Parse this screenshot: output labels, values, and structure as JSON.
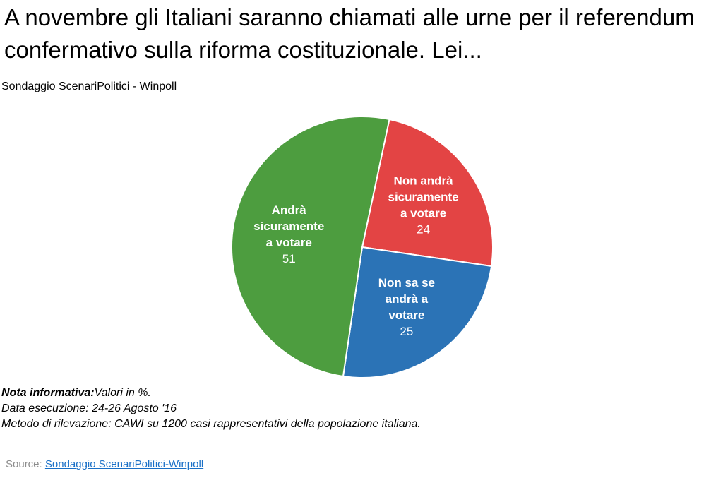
{
  "title": "A novembre gli Italiani saranno chiamati alle urne per il referendum confermativo sulla riforma costituzionale. Lei...",
  "subtitle": "Sondaggio ScenariPolitici - Winpoll",
  "chart_data": {
    "type": "pie",
    "title": "A novembre gli Italiani saranno chiamati alle urne per il referendum confermativo sulla riforma costituzionale. Lei...",
    "subtitle": "Sondaggio ScenariPolitici - Winpoll",
    "unit": "%",
    "slices": [
      {
        "label": "Non andrà sicuramente a votare",
        "label_lines": [
          "Non andrà",
          "sicuramente",
          "a votare"
        ],
        "value": 24,
        "color": "#e34444"
      },
      {
        "label": "Non sa se andrà a votare",
        "label_lines": [
          "Non sa se",
          "andrà a",
          "votare"
        ],
        "value": 25,
        "color": "#2b73b6"
      },
      {
        "label": "Andrà sicuramente a votare",
        "label_lines": [
          "Andrà",
          "sicuramente",
          "a votare"
        ],
        "value": 51,
        "color": "#4d9d3f"
      }
    ],
    "legend": "none",
    "labels": "inside"
  },
  "notes": {
    "line1_bold": "Nota informativa:",
    "line1_rest": "Valori in %.",
    "line2": "Data esecuzione: 24-26 Agosto '16",
    "line3": "Metodo di rilevazione: CAWI su 1200 casi rappresentativi della popolazione italiana."
  },
  "source": {
    "prefix": "Source: ",
    "link_text": "Sondaggio ScenariPolitici-Winpoll"
  }
}
